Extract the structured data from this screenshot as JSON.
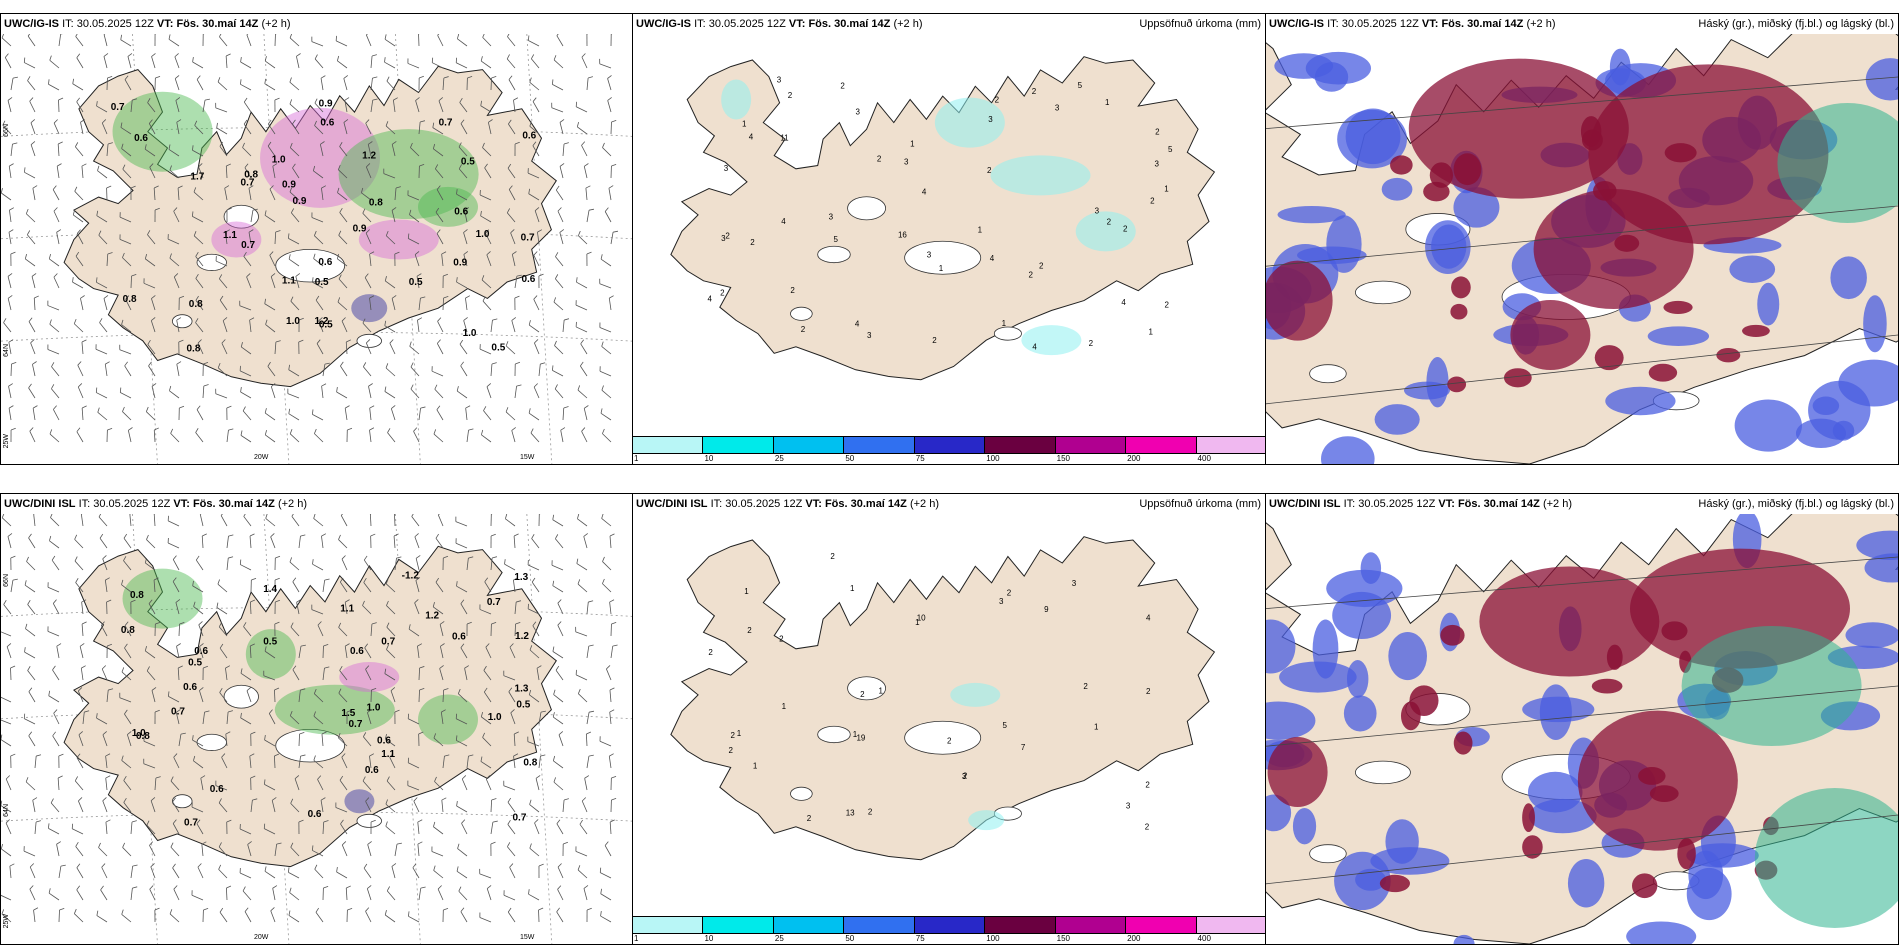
{
  "rows": [
    {
      "model": "UWC/IG-IS",
      "it_label": "IT:",
      "it_value": "30.05.2025 12Z",
      "vt_label": "VT:",
      "vt_value": "Fös. 30.maí 14Z",
      "lead": "(+2 h)",
      "precip_title": "Uppsöfnuð úrkoma (mm)",
      "cloud_title": "Háský (gr.), miðský (fj.bl.) og lágský (bl.)"
    },
    {
      "model": "UWC/DINI ISL",
      "it_label": "IT:",
      "it_value": "30.05.2025 12Z",
      "vt_label": "VT:",
      "vt_value": "Fös. 30.maí 14Z",
      "lead": "(+2 h)",
      "precip_title": "Uppsöfnuð úrkoma (mm)",
      "cloud_title": "Háský (gr.), miðský (fj.bl.) og lágský (bl.)"
    }
  ],
  "grid_labels": {
    "lat66": "66N",
    "lat64": "64N",
    "lon25": "25W",
    "lon20": "20W",
    "lon15": "15W"
  },
  "colorbar": {
    "labels": [
      "1",
      "10",
      "25",
      "50",
      "75",
      "100",
      "150",
      "200",
      "400"
    ],
    "colors": [
      "#b8f6f6",
      "#00eaea",
      "#00c0f0",
      "#3070f0",
      "#2828c8",
      "#6a0040",
      "#b00090",
      "#f000b0",
      "#f0b8f0"
    ]
  },
  "colors": {
    "land": "#efe0cf",
    "coast": "#222222",
    "low_cloud": "#4a5ee0",
    "mid_cloud": "#8a1035",
    "high_cloud": "#2fb58f",
    "precip_light": "#8ff0f0",
    "rain_green": "#49b84e",
    "rain_magenta": "#d86ad8"
  },
  "map_labels": {
    "wind_top": [
      "0.7",
      "1.0",
      "0.9",
      "1.2",
      "0.5",
      "0.7",
      "0.6",
      "0.8",
      "0.8",
      "0.9",
      "0.5",
      "1.0",
      "0.6",
      "0.7",
      "1.1",
      "0.9",
      "1.2",
      "1.0",
      "0.8",
      "0.6",
      "0.7",
      "0.6",
      "0.5",
      "0.7",
      "0.6",
      "0.8",
      "1.0",
      "0.9",
      "0.8",
      "0.9",
      "0.5",
      "1.7",
      "1.1",
      "0.5",
      "0.6"
    ],
    "wind_bottom": [
      "0.8",
      "0.6",
      "1.5",
      "0.6",
      "0.7",
      "1.3",
      "0.8",
      "1.4",
      "0.5",
      "0.7",
      "1.1",
      "0.7",
      "1.2",
      "0.8",
      "0.6",
      "1.1",
      "0.6",
      "1.0",
      "0.7",
      "0.8",
      "0.6",
      "0.6",
      "-1.2",
      "1.2",
      "0.5",
      "1.0",
      "0.7",
      "0.6",
      "1.0",
      "0.6",
      "1.3",
      "0.5",
      "0.7"
    ],
    "precip_top": [
      "1",
      "3",
      "3",
      "2",
      "2",
      "2",
      "4",
      "3",
      "4",
      "2",
      "2",
      "5",
      "1",
      "4",
      "3",
      "3",
      "2",
      "1",
      "1",
      "5",
      "5",
      "4",
      "3",
      "2",
      "2",
      "4",
      "3",
      "2",
      "2",
      "1",
      "2",
      "2",
      "2",
      "3",
      "3",
      "1",
      "4",
      "4",
      "2",
      "3",
      "3",
      "2",
      "2",
      "2",
      "2",
      "4",
      "11",
      "16",
      "1",
      "2",
      "1",
      "2",
      "3"
    ],
    "precip_bottom": [
      "1",
      "2",
      "3",
      "3",
      "4",
      "2",
      "2",
      "1",
      "5",
      "2",
      "2",
      "1",
      "2",
      "2",
      "2",
      "1",
      "2",
      "10",
      "7",
      "2",
      "2",
      "1",
      "2",
      "3",
      "2",
      "2",
      "1",
      "1",
      "2",
      "3",
      "2",
      "19",
      "13",
      "9",
      "1",
      "1"
    ]
  }
}
